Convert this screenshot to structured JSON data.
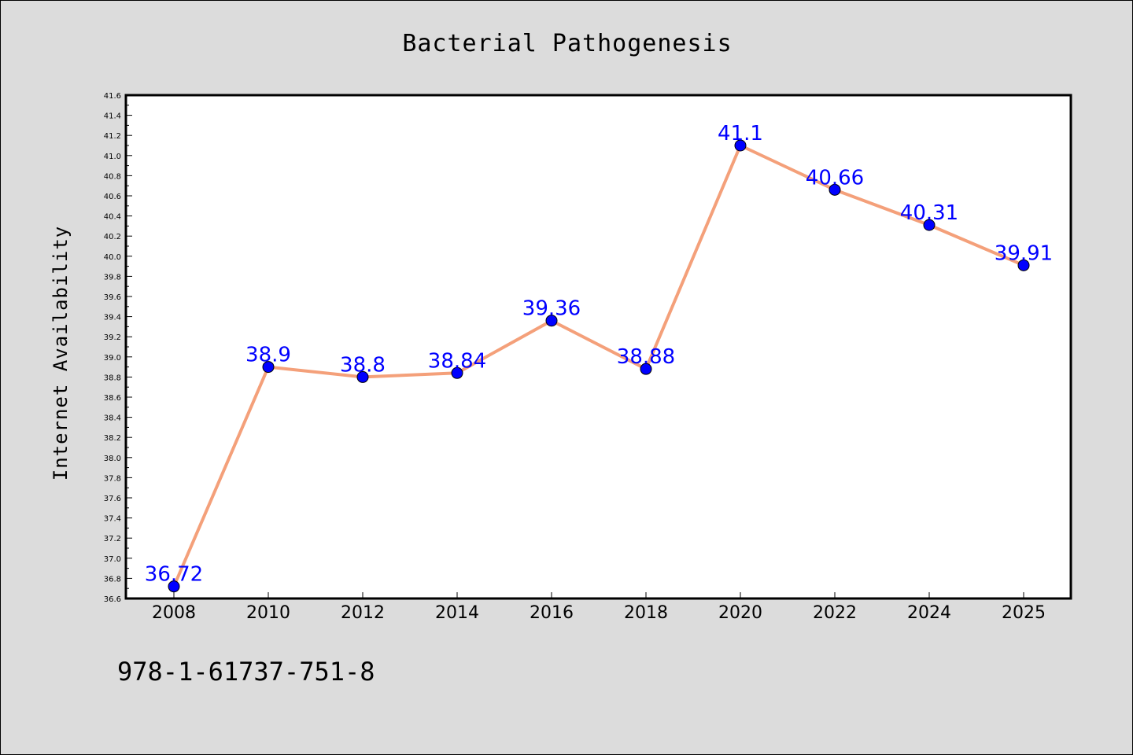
{
  "chart_data": {
    "type": "line",
    "title": "Bacterial Pathogenesis",
    "xlabel": "",
    "ylabel": "Internet Availability",
    "x": [
      "2008",
      "2010",
      "2012",
      "2014",
      "2016",
      "2018",
      "2020",
      "2022",
      "2024",
      "2025"
    ],
    "series": [
      {
        "values": [
          36.72,
          38.9,
          38.8,
          38.84,
          39.36,
          38.88,
          41.1,
          40.66,
          40.31,
          39.91
        ],
        "data_labels": [
          "36.72",
          "38.9",
          "38.8",
          "38.84",
          "39.36",
          "38.88",
          "41.1",
          "40.66",
          "40.31",
          "39.91"
        ]
      }
    ],
    "ylim": [
      36.6,
      41.6
    ],
    "yticks": [
      "36.6",
      "36.8",
      "37.0",
      "37.2",
      "37.4",
      "37.6",
      "37.8",
      "38.0",
      "38.2",
      "38.4",
      "38.6",
      "38.8",
      "39.0",
      "39.2",
      "39.4",
      "39.6",
      "39.8",
      "40.0",
      "40.2",
      "40.4",
      "40.6",
      "40.8",
      "41.0",
      "41.2",
      "41.4",
      "41.6"
    ],
    "grid": false,
    "legend": "none",
    "colors": {
      "line": "#f4a07a",
      "marker": "#0000ff",
      "data_label": "#0000ff",
      "background": "#dcdcdc",
      "plot_background": "#ffffff"
    }
  },
  "footer": {
    "isbn": "978-1-61737-751-8"
  }
}
